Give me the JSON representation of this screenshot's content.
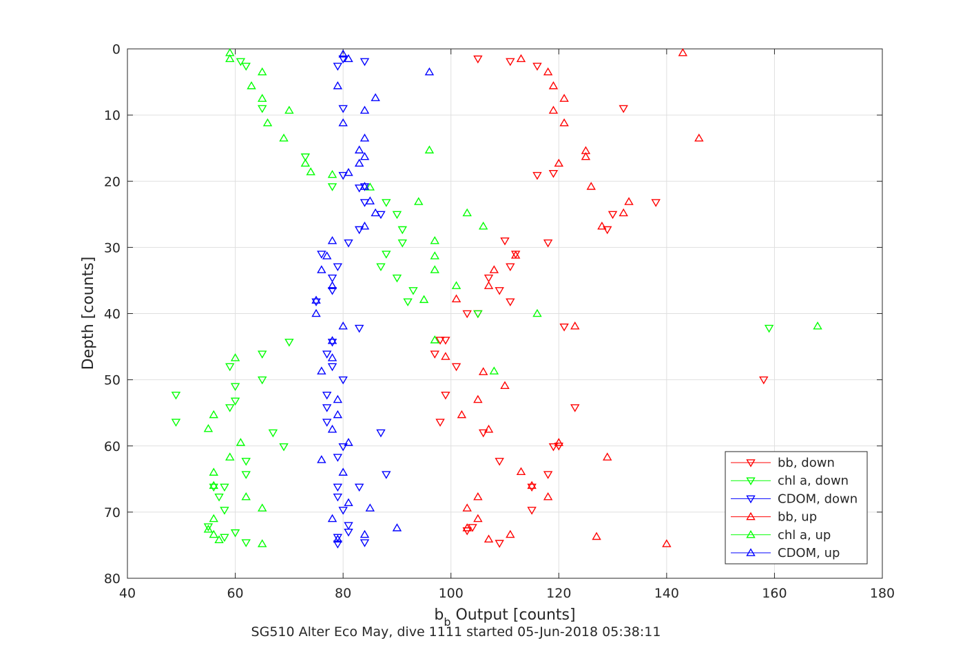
{
  "chart_data": {
    "type": "scatter",
    "xlabel_main": "b",
    "xlabel_sub": "b",
    "xlabel_rest": " Output [counts]",
    "ylabel": "Depth [counts]",
    "footer": "SG510 Alter Eco May, dive 1111 started 05-Jun-2018 05:38:11",
    "xlim": [
      40,
      180
    ],
    "ylim": [
      0,
      80
    ],
    "y_reversed": true,
    "xticks": [
      40,
      60,
      80,
      100,
      120,
      140,
      160,
      180
    ],
    "yticks": [
      0,
      10,
      20,
      30,
      40,
      50,
      60,
      70,
      80
    ],
    "grid": true,
    "legend_position": "bottom-right",
    "series": [
      {
        "name": "bb, down",
        "color": "#ff0000",
        "marker": "triangle-down",
        "points": [
          [
            105,
            1.5
          ],
          [
            111,
            1.9
          ],
          [
            116,
            2.6
          ],
          [
            132,
            9
          ],
          [
            116,
            19.1
          ],
          [
            119,
            18.8
          ],
          [
            118,
            29.3
          ],
          [
            111,
            32.9
          ],
          [
            109,
            36.5
          ],
          [
            111,
            38.2
          ],
          [
            103,
            40
          ],
          [
            105,
            40
          ],
          [
            98,
            44
          ],
          [
            99,
            44
          ],
          [
            97,
            46.1
          ],
          [
            101,
            48
          ],
          [
            158,
            50
          ],
          [
            99,
            52.3
          ],
          [
            123,
            54.2
          ],
          [
            98,
            56.4
          ],
          [
            106,
            58
          ],
          [
            119,
            60.1
          ],
          [
            109,
            62.3
          ],
          [
            118,
            64.3
          ],
          [
            115,
            66.2
          ],
          [
            115,
            69.7
          ],
          [
            103,
            72.8
          ],
          [
            104,
            72.3
          ],
          [
            109,
            74.7
          ],
          [
            120,
            60
          ],
          [
            121,
            42
          ],
          [
            112,
            31
          ],
          [
            107,
            34.6
          ],
          [
            138,
            23.2
          ],
          [
            130,
            25
          ],
          [
            129,
            27.3
          ],
          [
            110,
            29
          ]
        ]
      },
      {
        "name": "chl a, down",
        "color": "#00ff00",
        "marker": "triangle-down",
        "points": [
          [
            61,
            1.9
          ],
          [
            62,
            2.6
          ],
          [
            65,
            9
          ],
          [
            73,
            16.3
          ],
          [
            78,
            20.8
          ],
          [
            90,
            25
          ],
          [
            91,
            27.3
          ],
          [
            91,
            29.3
          ],
          [
            88,
            31
          ],
          [
            87,
            32.9
          ],
          [
            90,
            34.6
          ],
          [
            93,
            36.5
          ],
          [
            92,
            38.2
          ],
          [
            105,
            40
          ],
          [
            70,
            44.3
          ],
          [
            65,
            46.1
          ],
          [
            59,
            48
          ],
          [
            65,
            50
          ],
          [
            60,
            51
          ],
          [
            49,
            52.3
          ],
          [
            60,
            53.2
          ],
          [
            59,
            54.2
          ],
          [
            49,
            56.4
          ],
          [
            67,
            58
          ],
          [
            69,
            60.1
          ],
          [
            62,
            62.3
          ],
          [
            62,
            64.3
          ],
          [
            58,
            66.2
          ],
          [
            56,
            66.2
          ],
          [
            57,
            67.7
          ],
          [
            58,
            69.7
          ],
          [
            55,
            72.2
          ],
          [
            60,
            73.1
          ],
          [
            58,
            73.8
          ],
          [
            62,
            74.6
          ],
          [
            159,
            42.2
          ],
          [
            88,
            23.2
          ]
        ]
      },
      {
        "name": "CDOM, down",
        "color": "#0000ff",
        "marker": "triangle-down",
        "points": [
          [
            80,
            1.5
          ],
          [
            84,
            1.9
          ],
          [
            79,
            2.6
          ],
          [
            80,
            9
          ],
          [
            80,
            19.1
          ],
          [
            84,
            20.8
          ],
          [
            84,
            23.2
          ],
          [
            87,
            25
          ],
          [
            83,
            27.3
          ],
          [
            81,
            29.3
          ],
          [
            76,
            31
          ],
          [
            79,
            32.9
          ],
          [
            78,
            34.6
          ],
          [
            78,
            36.5
          ],
          [
            75,
            38.2
          ],
          [
            83,
            42.2
          ],
          [
            78,
            44.3
          ],
          [
            77,
            46.1
          ],
          [
            78,
            48
          ],
          [
            80,
            50
          ],
          [
            77,
            52.3
          ],
          [
            77,
            54.2
          ],
          [
            77,
            56.4
          ],
          [
            87,
            58
          ],
          [
            80,
            60.1
          ],
          [
            79,
            61.7
          ],
          [
            88,
            64.3
          ],
          [
            79,
            66.2
          ],
          [
            83,
            66.2
          ],
          [
            79,
            67.7
          ],
          [
            80,
            69.7
          ],
          [
            81,
            72
          ],
          [
            81,
            73
          ],
          [
            79,
            73.8
          ],
          [
            84,
            74.6
          ],
          [
            79,
            74.8
          ],
          [
            83,
            21
          ]
        ]
      },
      {
        "name": "bb, up",
        "color": "#ff0000",
        "marker": "triangle-up",
        "points": [
          [
            143,
            0.6
          ],
          [
            113,
            1.5
          ],
          [
            118,
            3.5
          ],
          [
            119,
            5.6
          ],
          [
            121,
            7.5
          ],
          [
            121,
            11.2
          ],
          [
            146,
            13.5
          ],
          [
            125,
            15.4
          ],
          [
            125,
            16.3
          ],
          [
            120,
            17.3
          ],
          [
            126,
            20.8
          ],
          [
            133,
            23.1
          ],
          [
            132,
            24.8
          ],
          [
            128,
            26.8
          ],
          [
            112,
            31.2
          ],
          [
            108,
            33.4
          ],
          [
            107,
            35.8
          ],
          [
            101,
            37.8
          ],
          [
            99,
            46.5
          ],
          [
            123,
            41.9
          ],
          [
            106,
            48.8
          ],
          [
            110,
            50.9
          ],
          [
            105,
            53
          ],
          [
            102,
            55.3
          ],
          [
            107,
            57.5
          ],
          [
            120,
            59.5
          ],
          [
            129,
            61.7
          ],
          [
            113,
            63.9
          ],
          [
            115,
            66
          ],
          [
            118,
            67.7
          ],
          [
            105,
            67.7
          ],
          [
            103,
            69.4
          ],
          [
            105,
            71
          ],
          [
            103,
            72.4
          ],
          [
            111,
            73.4
          ],
          [
            107,
            74.1
          ],
          [
            127,
            73.7
          ],
          [
            140,
            74.8
          ],
          [
            119,
            9.3
          ]
        ]
      },
      {
        "name": "chl a, up",
        "color": "#00ff00",
        "marker": "triangle-up",
        "points": [
          [
            59,
            0.6
          ],
          [
            59,
            1.5
          ],
          [
            65,
            3.5
          ],
          [
            63,
            5.6
          ],
          [
            65,
            7.5
          ],
          [
            70,
            9.3
          ],
          [
            66,
            11.2
          ],
          [
            69,
            13.5
          ],
          [
            96,
            15.3
          ],
          [
            73,
            17.3
          ],
          [
            74,
            18.6
          ],
          [
            78,
            19
          ],
          [
            85,
            20.9
          ],
          [
            94,
            23.1
          ],
          [
            103,
            24.8
          ],
          [
            106,
            26.8
          ],
          [
            97,
            29
          ],
          [
            97,
            31.3
          ],
          [
            97,
            33.4
          ],
          [
            101,
            35.8
          ],
          [
            95,
            37.9
          ],
          [
            116,
            40
          ],
          [
            97,
            44
          ],
          [
            60,
            46.7
          ],
          [
            108,
            48.7
          ],
          [
            61,
            59.5
          ],
          [
            59,
            61.7
          ],
          [
            56,
            64
          ],
          [
            56,
            66
          ],
          [
            62,
            67.7
          ],
          [
            65,
            69.4
          ],
          [
            56,
            71
          ],
          [
            55,
            72.6
          ],
          [
            56,
            73.4
          ],
          [
            57,
            74.2
          ],
          [
            65,
            74.8
          ],
          [
            56,
            55.3
          ],
          [
            55,
            57.4
          ],
          [
            168,
            41.9
          ]
        ]
      },
      {
        "name": "CDOM, up",
        "color": "#0000ff",
        "marker": "triangle-up",
        "points": [
          [
            80,
            0.8
          ],
          [
            81,
            1.5
          ],
          [
            96,
            3.5
          ],
          [
            79,
            5.6
          ],
          [
            86,
            7.4
          ],
          [
            84,
            9.3
          ],
          [
            80,
            11.2
          ],
          [
            84,
            13.5
          ],
          [
            83,
            15.3
          ],
          [
            84,
            16.3
          ],
          [
            83,
            17.3
          ],
          [
            81,
            18.7
          ],
          [
            84,
            20.8
          ],
          [
            85,
            23
          ],
          [
            86,
            24.8
          ],
          [
            84,
            26.8
          ],
          [
            78,
            29
          ],
          [
            77,
            31.3
          ],
          [
            76,
            33.4
          ],
          [
            78,
            35.8
          ],
          [
            75,
            38
          ],
          [
            75,
            40
          ],
          [
            80,
            41.9
          ],
          [
            78,
            44.1
          ],
          [
            78,
            46.7
          ],
          [
            76,
            48.7
          ],
          [
            79,
            53
          ],
          [
            79,
            55.3
          ],
          [
            78,
            57.5
          ],
          [
            81,
            59.5
          ],
          [
            76,
            62.1
          ],
          [
            80,
            64
          ],
          [
            81,
            68.6
          ],
          [
            85,
            69.4
          ],
          [
            78,
            71
          ],
          [
            90,
            72.4
          ],
          [
            84,
            73.4
          ],
          [
            79,
            74.1
          ]
        ]
      }
    ]
  }
}
